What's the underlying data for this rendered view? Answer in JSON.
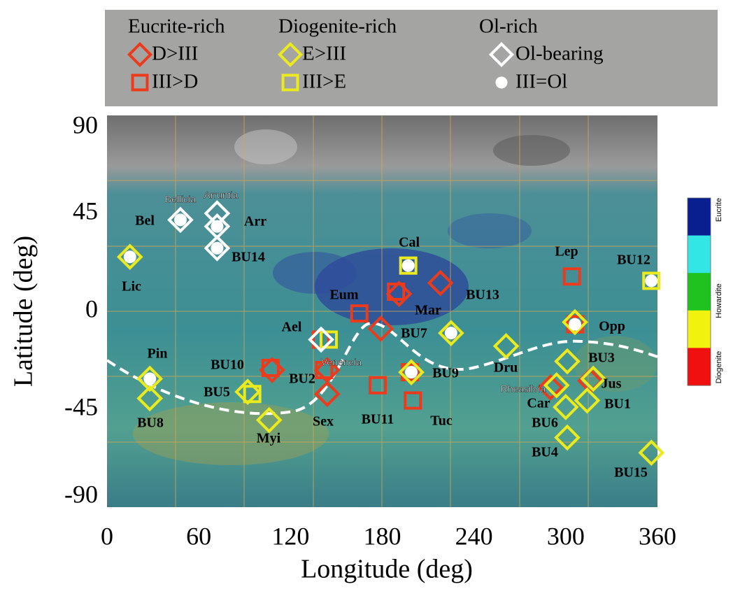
{
  "chart_data": {
    "type": "scatter",
    "x_label": "Longitude (deg)",
    "y_label": "Latitude (deg)",
    "xlim": [
      0,
      360
    ],
    "xticks": [
      0,
      60,
      120,
      180,
      240,
      300,
      360
    ],
    "ylim": [
      -90,
      90
    ],
    "yticks": [
      -90,
      -45,
      0,
      45,
      90
    ],
    "legend_groups": [
      "Eucrite-rich",
      "Diogenite-rich",
      "Ol-rich"
    ],
    "series": [
      {
        "name": "D>III",
        "marker": "diamond",
        "color": "#ec3b1c",
        "x": [
          191,
          218,
          179,
          108,
          144,
          144,
          290,
          316
        ],
        "values": [
          8,
          13,
          -8,
          -27,
          -27,
          -38,
          -35,
          -32
        ]
      },
      {
        "name": "III>D",
        "marker": "square",
        "color": "#ec3b1c",
        "x": [
          165,
          189,
          304,
          140,
          142,
          177,
          200,
          198,
          306,
          107
        ],
        "values": [
          -1,
          9,
          16,
          -13,
          -27,
          -34,
          -41,
          -28,
          -6,
          -26
        ]
      },
      {
        "name": "E>III",
        "marker": "diamond",
        "color": "#eaea1e",
        "x": [
          15,
          28,
          28,
          92,
          106,
          225,
          199,
          261,
          301,
          300,
          301,
          318,
          314,
          356,
          294,
          306
        ],
        "values": [
          25,
          -31,
          -40,
          -37,
          -50,
          -10,
          -28,
          -16,
          -23,
          -44,
          -58,
          -31,
          -41,
          -65,
          -34,
          -5
        ]
      },
      {
        "name": "III>E",
        "marker": "square",
        "color": "#eaea1e",
        "x": [
          197,
          356,
          145,
          95
        ],
        "values": [
          21,
          14,
          -13,
          -38
        ]
      },
      {
        "name": "Ol-bearing",
        "marker": "diamond",
        "color": "#ffffff",
        "x": [
          48,
          72,
          72,
          72,
          140
        ],
        "values": [
          42,
          45,
          39,
          29,
          -13
        ]
      },
      {
        "name": "III=Ol",
        "marker": "dot",
        "color": "#ffffff",
        "x": [
          48,
          72,
          72,
          15,
          28,
          197,
          356,
          225,
          306,
          199
        ],
        "values": [
          42,
          39,
          29,
          25,
          -31,
          21,
          14,
          -10,
          -6,
          -28
        ]
      }
    ],
    "site_labels": [
      "Bel",
      "Arr",
      "BU14",
      "Lic",
      "Cal",
      "Eum",
      "Mar",
      "BU13",
      "BU7",
      "Ael",
      "Pin",
      "BU10",
      "BU2",
      "BU5",
      "BU8",
      "Myi",
      "Sex",
      "BU11",
      "Tuc",
      "BU9",
      "Dru",
      "Lep",
      "BU12",
      "Opp",
      "BU3",
      "Jus",
      "Car",
      "BU1",
      "BU6",
      "BU4",
      "BU15"
    ],
    "region_labels": [
      "Bellicia",
      "Arruntia",
      "Veneneia",
      "Rheasilvia"
    ],
    "colorbar": {
      "labels": [
        "Eucrite",
        "Howardite",
        "Diogenite"
      ],
      "colors": [
        "#0a1f8f",
        "#33e6e6",
        "#1fc21f",
        "#f2f20f",
        "#f01010"
      ]
    }
  }
}
